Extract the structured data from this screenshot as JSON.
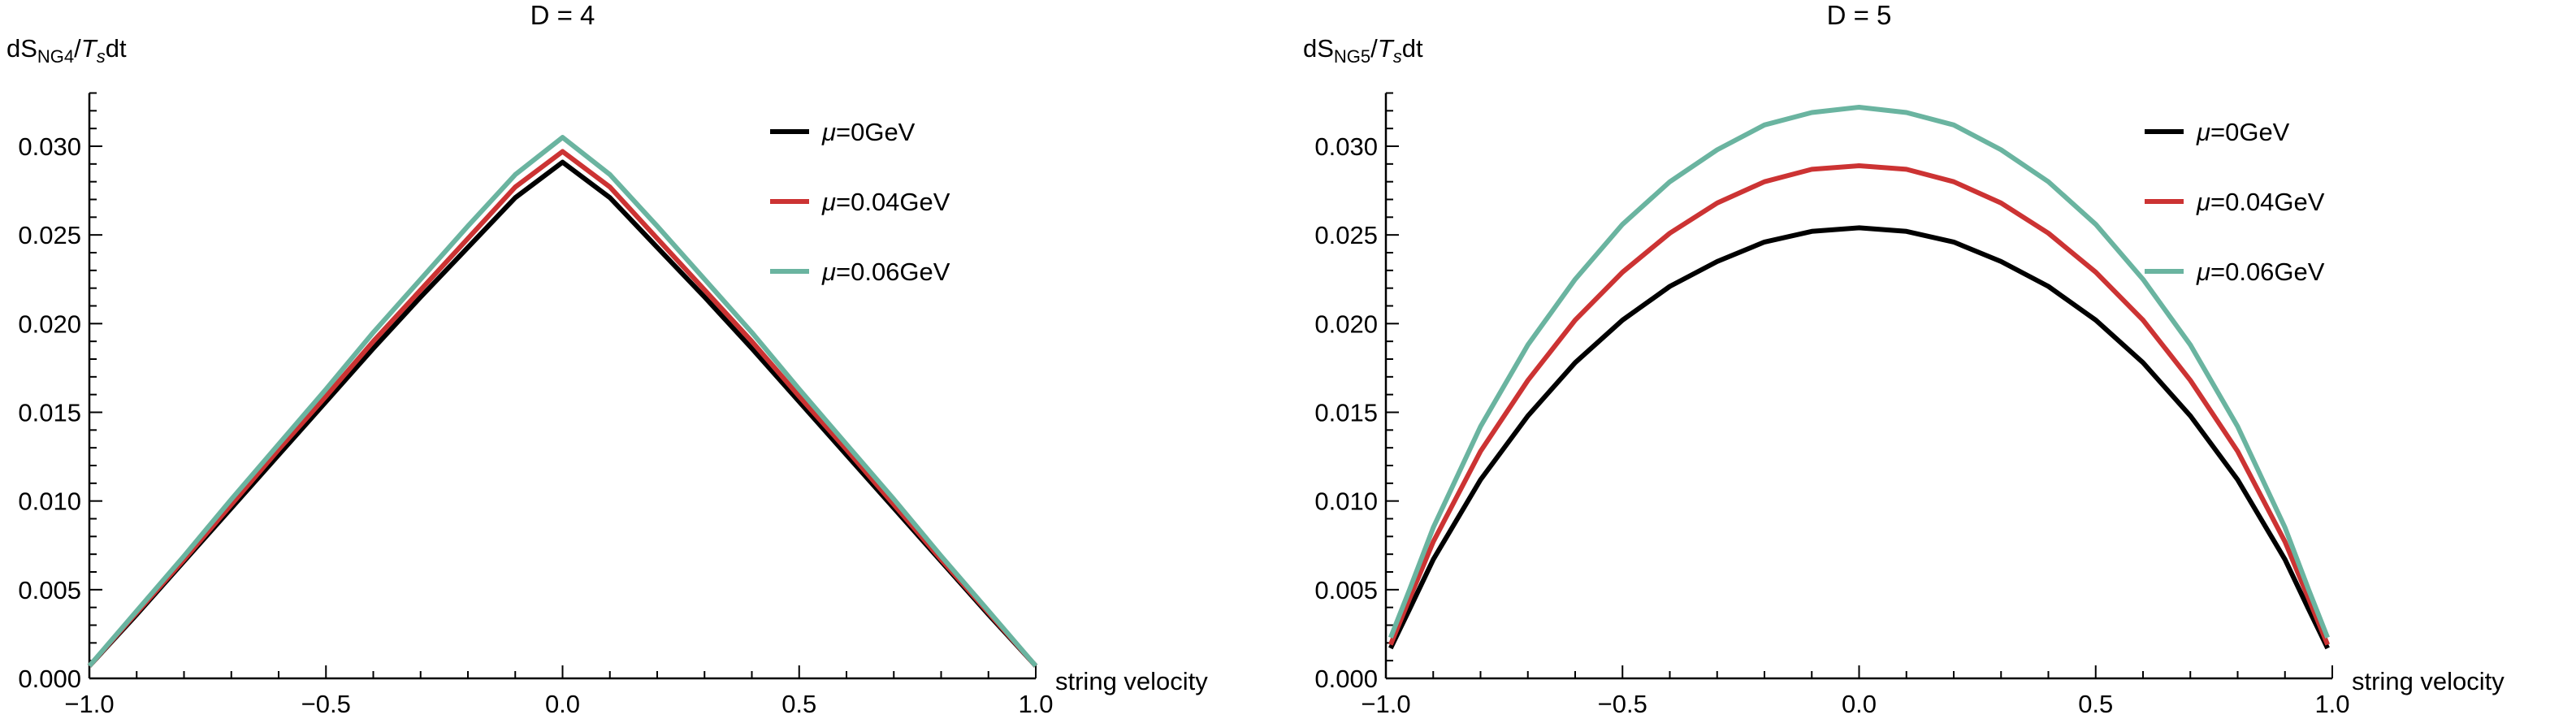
{
  "colors": {
    "mu0": "#000000",
    "mu004": "#cc3333",
    "mu006": "#6ab4a0"
  },
  "chart_data": [
    {
      "type": "line",
      "title": "D = 4",
      "ylabel": {
        "main": "dS",
        "sub": "NG4",
        "slash": "/",
        "T": "T",
        "Tsub": "s",
        "tail": "dt"
      },
      "xlabel": "string velocity",
      "xlim": [
        -1.0,
        1.0
      ],
      "ylim": [
        0.0,
        0.033
      ],
      "xticks": [
        "-1.0",
        "-0.5",
        "0.0",
        "0.5",
        "1.0"
      ],
      "yticks": [
        "0.000",
        "0.005",
        "0.010",
        "0.015",
        "0.020",
        "0.025",
        "0.030"
      ],
      "legend_position": "top-right",
      "grid": false,
      "x": [
        -1.0,
        -0.9,
        -0.8,
        -0.7,
        -0.6,
        -0.5,
        -0.4,
        -0.3,
        -0.2,
        -0.1,
        0.0,
        0.1,
        0.2,
        0.3,
        0.4,
        0.5,
        0.6,
        0.7,
        0.8,
        0.9,
        1.0
      ],
      "series": [
        {
          "name": "μ=0GeV",
          "mu": "μ",
          "rest": "=0GeV",
          "color": "#000000",
          "values": [
            0.0007,
            0.0036,
            0.0066,
            0.0096,
            0.0126,
            0.0156,
            0.0186,
            0.0215,
            0.0243,
            0.0271,
            0.0291,
            0.0271,
            0.0243,
            0.0215,
            0.0186,
            0.0156,
            0.0126,
            0.0096,
            0.0066,
            0.0036,
            0.0007
          ]
        },
        {
          "name": "μ=0.04GeV",
          "mu": "μ",
          "rest": "=0.04GeV",
          "color": "#cc3333",
          "values": [
            0.0007,
            0.0037,
            0.0067,
            0.0098,
            0.0129,
            0.0159,
            0.019,
            0.0219,
            0.0248,
            0.0277,
            0.0297,
            0.0277,
            0.0248,
            0.0219,
            0.019,
            0.0159,
            0.0129,
            0.0098,
            0.0067,
            0.0037,
            0.0007
          ]
        },
        {
          "name": "μ=0.06GeV",
          "mu": "μ",
          "rest": "=0.06GeV",
          "color": "#6ab4a0",
          "values": [
            0.0007,
            0.0038,
            0.0069,
            0.0101,
            0.0132,
            0.0163,
            0.0195,
            0.0225,
            0.0255,
            0.0284,
            0.0305,
            0.0284,
            0.0255,
            0.0225,
            0.0195,
            0.0163,
            0.0132,
            0.0101,
            0.0069,
            0.0038,
            0.0007
          ]
        }
      ]
    },
    {
      "type": "line",
      "title": "D = 5",
      "ylabel": {
        "main": "dS",
        "sub": "NG5",
        "slash": "/",
        "T": "T",
        "Tsub": "s",
        "tail": "dt"
      },
      "xlabel": "string velocity",
      "xlim": [
        -1.0,
        1.0
      ],
      "ylim": [
        0.0,
        0.033
      ],
      "xticks": [
        "-1.0",
        "-0.5",
        "0.0",
        "0.5",
        "1.0"
      ],
      "yticks": [
        "0.000",
        "0.005",
        "0.010",
        "0.015",
        "0.020",
        "0.025",
        "0.030"
      ],
      "legend_position": "top-right",
      "grid": false,
      "x": [
        -0.99,
        -0.95,
        -0.9,
        -0.8,
        -0.7,
        -0.6,
        -0.5,
        -0.4,
        -0.3,
        -0.2,
        -0.1,
        0.0,
        0.1,
        0.2,
        0.3,
        0.4,
        0.5,
        0.6,
        0.7,
        0.8,
        0.9,
        0.95,
        0.99
      ],
      "series": [
        {
          "name": "μ=0GeV",
          "mu": "μ",
          "rest": "=0GeV",
          "color": "#000000",
          "values": [
            0.0017,
            0.0039,
            0.0067,
            0.0112,
            0.0148,
            0.0178,
            0.0202,
            0.0221,
            0.0235,
            0.0246,
            0.0252,
            0.0254,
            0.0252,
            0.0246,
            0.0235,
            0.0221,
            0.0202,
            0.0178,
            0.0148,
            0.0112,
            0.0067,
            0.0039,
            0.0017
          ]
        },
        {
          "name": "μ=0.04GeV",
          "mu": "μ",
          "rest": "=0.04GeV",
          "color": "#cc3333",
          "values": [
            0.0019,
            0.0045,
            0.0077,
            0.0128,
            0.0168,
            0.0202,
            0.0229,
            0.0251,
            0.0268,
            0.028,
            0.0287,
            0.0289,
            0.0287,
            0.028,
            0.0268,
            0.0251,
            0.0229,
            0.0202,
            0.0168,
            0.0128,
            0.0077,
            0.0045,
            0.0019
          ]
        },
        {
          "name": "μ=0.06GeV",
          "mu": "μ",
          "rest": "=0.06GeV",
          "color": "#6ab4a0",
          "values": [
            0.0023,
            0.005,
            0.0085,
            0.0142,
            0.0188,
            0.0225,
            0.0256,
            0.028,
            0.0298,
            0.0312,
            0.0319,
            0.0322,
            0.0319,
            0.0312,
            0.0298,
            0.028,
            0.0256,
            0.0225,
            0.0188,
            0.0142,
            0.0085,
            0.005,
            0.0023
          ]
        }
      ]
    }
  ]
}
